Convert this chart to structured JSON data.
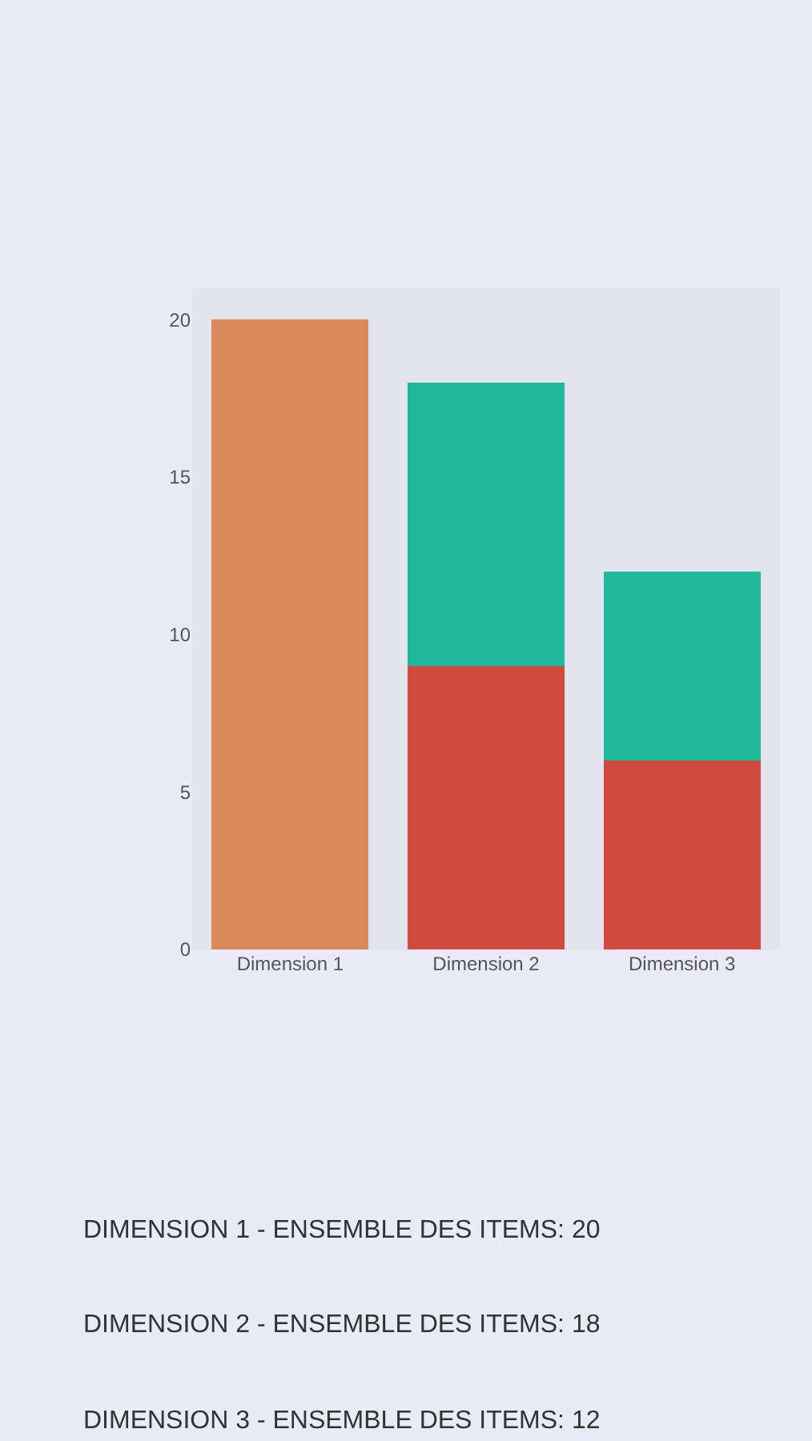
{
  "chart_data": {
    "type": "bar",
    "stacked": true,
    "categories": [
      "Dimension 1",
      "Dimension 2",
      "Dimension 3"
    ],
    "series": [
      {
        "color": "#d9895a",
        "values": [
          20,
          null,
          null
        ]
      },
      {
        "color": "#d2493f",
        "values": [
          null,
          9,
          6
        ]
      },
      {
        "color": "#1fb89a",
        "values": [
          null,
          9,
          6
        ]
      }
    ],
    "ylim": [
      0,
      21
    ],
    "yticks": [
      0,
      5,
      10,
      15,
      20
    ],
    "grid": false,
    "annotations": [
      "DIMENSION 1 - ENSEMBLE DES ITEMS: 20",
      "DIMENSION 2 - ENSEMBLE DES ITEMS: 18",
      "DIMENSION 3 - ENSEMBLE DES ITEMS: 12"
    ]
  }
}
